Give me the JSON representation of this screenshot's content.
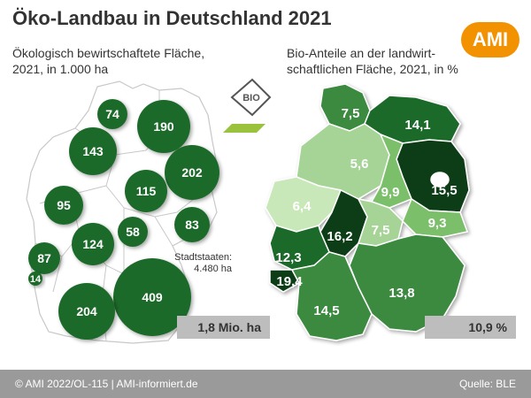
{
  "title": "Öko-Landbau in Deutschland 2021",
  "left_subtitle": "Ökologisch bewirtschaftete Fläche, 2021, in 1.000 ha",
  "right_subtitle": "Bio-Anteile an der landwirt-schaftlichen Fläche, 2021, in %",
  "logo_text": "AMI",
  "bio_badge_text": "BIO",
  "stadtstaaten_label": "Stadtstaaten:",
  "stadtstaaten_value": "4.480 ha",
  "total_left": "1,8 Mio. ha",
  "total_right": "10,9 %",
  "footer_left": "© AMI 2022/OL-115 | AMI-informiert.de",
  "footer_right": "Quelle: BLE",
  "colors": {
    "circle": "#1f6b2c",
    "title": "#333333",
    "logo": "#f39200",
    "footer": "#9a9a9a"
  },
  "area_values": [
    "74",
    "190",
    "143",
    "202",
    "115",
    "95",
    "83",
    "58",
    "124",
    "87",
    "14",
    "409",
    "204"
  ],
  "share_values": [
    "7,5",
    "14,1",
    "5,6",
    "15,5",
    "9,9",
    "6,4",
    "9,3",
    "16,2",
    "7,5",
    "12,3",
    "19,4",
    "13,8",
    "14,5"
  ]
}
